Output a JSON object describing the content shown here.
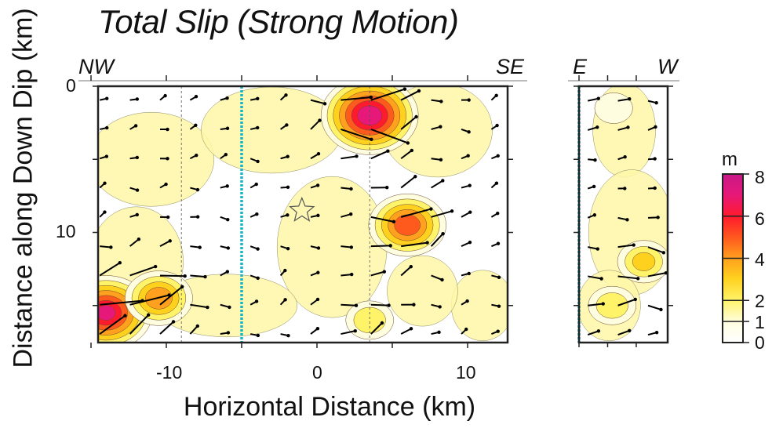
{
  "chart_data": {
    "type": "heatmap",
    "title": "Total Slip (Strong Motion)",
    "xlabel": "Horizontal Distance (km)",
    "ylabel": "Distance along Down Dip (km)",
    "main_panel": {
      "left_dir": "NW",
      "right_dir": "SE",
      "xlim": [
        -15,
        13
      ],
      "x_ticks": [
        -10,
        0,
        10
      ],
      "x_tick_labels": [
        "-10",
        "0",
        "10"
      ],
      "hypocenter": [
        -1,
        8.5
      ],
      "dashed_lines_x": [
        -9,
        3.5
      ],
      "boundary_line_x": -5,
      "slip_patches": [
        {
          "x": 3.5,
          "y": 2,
          "max_slip": 7.5
        },
        {
          "x": 6,
          "y": 9.5,
          "max_slip": 5.5
        },
        {
          "x": -14,
          "y": 15.5,
          "max_slip": 7
        },
        {
          "x": -10.5,
          "y": 14.5,
          "max_slip": 4.5
        },
        {
          "x": 3.5,
          "y": 16,
          "max_slip": 2.5
        }
      ]
    },
    "side_panel": {
      "left_dir": "E",
      "right_dir": "W",
      "boundary_line_x": 0,
      "slip_patches": [
        {
          "x": 4.3,
          "y": 12,
          "max_slip": 3
        },
        {
          "x": 2.2,
          "y": 15,
          "max_slip": 2.5
        },
        {
          "x": 2.3,
          "y": 1.5,
          "max_slip": 1.5
        }
      ]
    },
    "ylim": [
      0,
      17.5
    ],
    "y_ticks": [
      0,
      10
    ],
    "y_tick_labels": [
      "0",
      "10"
    ],
    "colorbar": {
      "unit": "m",
      "range": [
        0,
        8
      ],
      "tick_labels": [
        "0",
        "1",
        "2",
        "4",
        "6",
        "8"
      ],
      "colors": [
        "#ffffff",
        "#fffde0",
        "#fff36a",
        "#ffd11f",
        "#ffa01e",
        "#ff5a1e",
        "#ff1a2e",
        "#e6187a",
        "#c71888"
      ]
    }
  }
}
